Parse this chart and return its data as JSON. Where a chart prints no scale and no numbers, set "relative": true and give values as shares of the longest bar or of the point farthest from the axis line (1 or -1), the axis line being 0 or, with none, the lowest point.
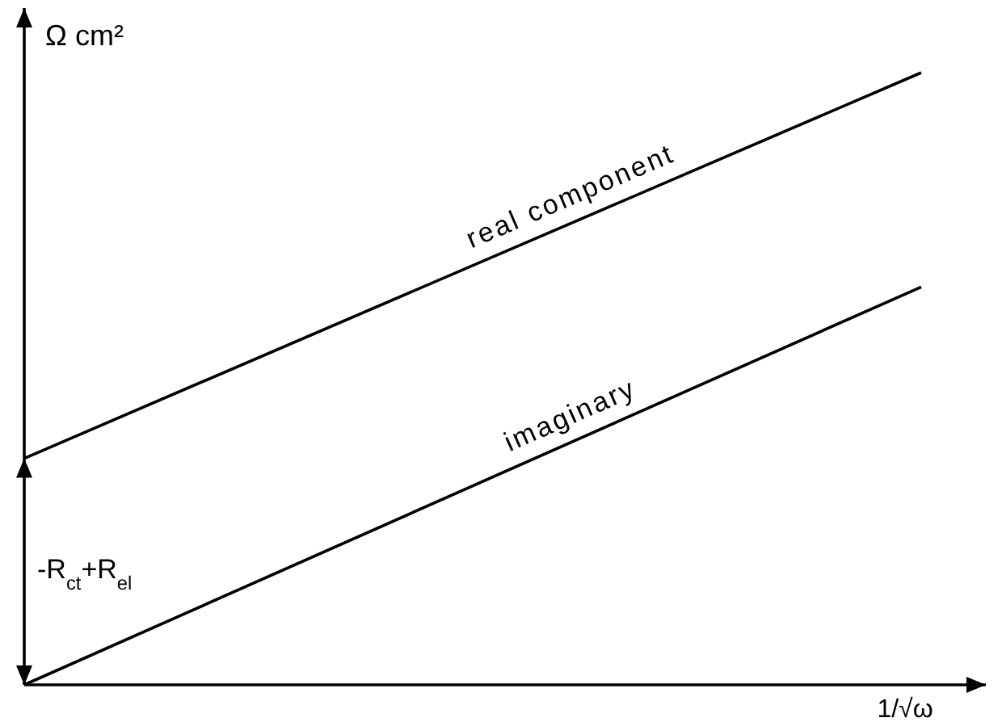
{
  "chart_data": {
    "type": "line",
    "relative": true,
    "xlabel": "1/√ω",
    "ylabel": "Ω cm²",
    "categories": [
      null,
      null
    ],
    "series": [
      {
        "name": "real component",
        "color": "#000000",
        "values": [
          0.37,
          1
        ]
      },
      {
        "name": "imaginary",
        "color": "#000000",
        "values": [
          0,
          0.65
        ]
      }
    ],
    "annotations": [
      "-R$_{ct}$+R$_{el}$"
    ]
  }
}
